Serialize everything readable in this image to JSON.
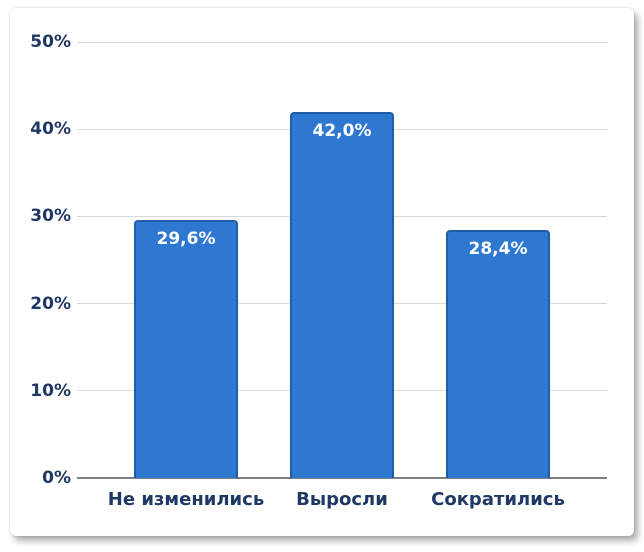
{
  "chart_data": {
    "type": "bar",
    "title": "",
    "xlabel": "",
    "ylabel": "",
    "categories": [
      "Не изменились",
      "Выросли",
      "Сократились"
    ],
    "values": [
      29.6,
      42.0,
      28.4
    ],
    "value_labels": [
      "29,6%",
      "42,0%",
      "28,4%"
    ],
    "ylim": [
      0,
      50
    ],
    "yticks": [
      0,
      10,
      20,
      30,
      40,
      50
    ],
    "ytick_labels": [
      "0%",
      "10%",
      "20%",
      "30%",
      "40%",
      "50%"
    ],
    "grid": true,
    "legend": false,
    "colors": {
      "bar_fill": "#2E78D2",
      "bar_border": "#1F5CA9",
      "axis_text": "#1F3864",
      "data_label_text": "#FFFFFF",
      "gridline": "#D8D8D8",
      "axis_line": "#7F7F7F",
      "card_background": "#FFFFFF"
    }
  }
}
